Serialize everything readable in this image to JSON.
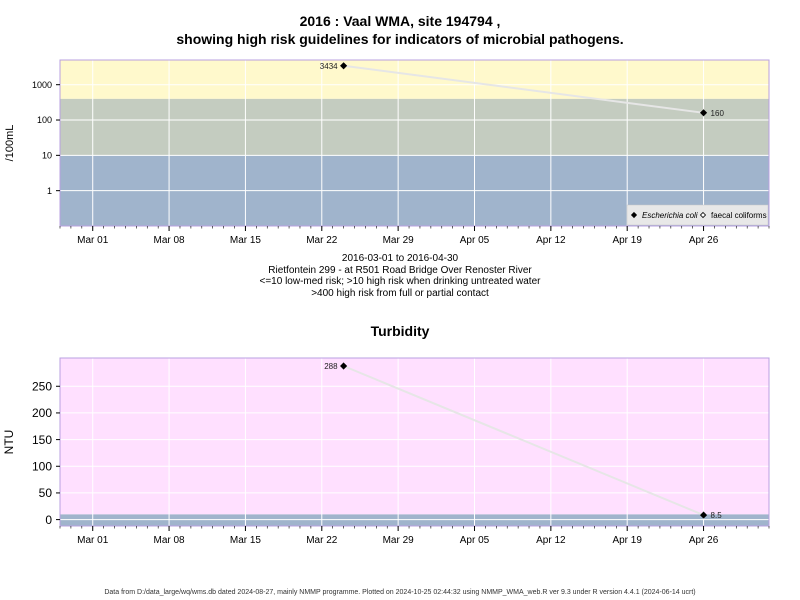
{
  "header": {
    "title_line1": "2016 : Vaal WMA, site 194794 ,",
    "title_line2": "showing high risk guidelines for indicators of microbial pathogens."
  },
  "microbial_caption": {
    "line1": "2016-03-01 to 2016-04-30",
    "line2": "Rietfontein 299 - at R501 Road Bridge Over Renoster River",
    "line3": "<=10 low-med risk; >10 high risk when drinking untreated water",
    "line4": ">400 high risk from full or partial contact"
  },
  "turbidity_title": "Turbidity",
  "footer": "Data from D:/data_large/wq/wms.db dated 2024-08-27, mainly NMMP programme. Plotted on 2024-10-25 02:44:32 using NMMP_WMA_web.R ver 9.3 under R version 4.4.1 (2024-06-14 ucrt)",
  "colors": {
    "band_high": "#fff9cc",
    "band_mid": "#c4ccc0",
    "band_low": "#a0b4cc",
    "turbidity_bg": "#ffe0ff",
    "turbidity_low_band": "#a0b4cc",
    "line": "#e6e6e6",
    "grid": "#ffffff",
    "frame": "#b8a0e0",
    "marker": "#000000"
  },
  "chart_data": [
    {
      "type": "line",
      "ylabel": "/100mL",
      "scale": "log",
      "x_tick_labels": [
        "Mar 01",
        "Mar 08",
        "Mar 15",
        "Mar 22",
        "Mar 29",
        "Apr 05",
        "Apr 12",
        "Apr 19",
        "Apr 26"
      ],
      "x_ticks": [
        "2016-03-01",
        "2016-03-08",
        "2016-03-15",
        "2016-03-22",
        "2016-03-29",
        "2016-04-05",
        "2016-04-12",
        "2016-04-19",
        "2016-04-26"
      ],
      "xlim": [
        "2016-02-27",
        "2016-05-02"
      ],
      "y_tick_labels": [
        "1",
        "10",
        "100",
        "1000"
      ],
      "y_ticks": [
        1,
        10,
        100,
        1000
      ],
      "ylim": [
        0.1,
        5000
      ],
      "bands": [
        {
          "from": 0.1,
          "to": 10,
          "color": "#a0b4cc"
        },
        {
          "from": 10,
          "to": 400,
          "color": "#c4ccc0"
        },
        {
          "from": 400,
          "to": 5000,
          "color": "#fff9cc"
        }
      ],
      "legend": {
        "placement": "bottom-right",
        "entries": [
          {
            "label": "Escherichia coli",
            "marker": "filled-diamond"
          },
          {
            "label": "faecal coliforms",
            "marker": "open-diamond"
          }
        ]
      },
      "series": [
        {
          "name": "Escherichia coli",
          "points": [
            {
              "x": "2016-03-24",
              "y": 3434,
              "label": "3434"
            },
            {
              "x": "2016-04-26",
              "y": 160,
              "label": "160"
            }
          ]
        }
      ]
    },
    {
      "type": "line",
      "title": "Turbidity",
      "ylabel": "NTU",
      "x_tick_labels": [
        "Mar 01",
        "Mar 08",
        "Mar 15",
        "Mar 22",
        "Mar 29",
        "Apr 05",
        "Apr 12",
        "Apr 19",
        "Apr 26"
      ],
      "x_ticks": [
        "2016-03-01",
        "2016-03-08",
        "2016-03-15",
        "2016-03-22",
        "2016-03-29",
        "2016-04-05",
        "2016-04-12",
        "2016-04-19",
        "2016-04-26"
      ],
      "xlim": [
        "2016-02-27",
        "2016-05-02"
      ],
      "y_tick_labels": [
        "0",
        "50",
        "100",
        "150",
        "200",
        "250"
      ],
      "y_ticks": [
        0,
        50,
        100,
        150,
        200,
        250
      ],
      "ylim": [
        -12,
        303
      ],
      "bands": [
        {
          "from": -12,
          "to": 10,
          "color": "#a0b4cc"
        },
        {
          "from": 10,
          "to": 303,
          "color": "#ffe0ff"
        }
      ],
      "series": [
        {
          "points": [
            {
              "x": "2016-03-24",
              "y": 288,
              "label": "288"
            },
            {
              "x": "2016-04-26",
              "y": 8.5,
              "label": "8.5"
            }
          ]
        }
      ]
    }
  ]
}
